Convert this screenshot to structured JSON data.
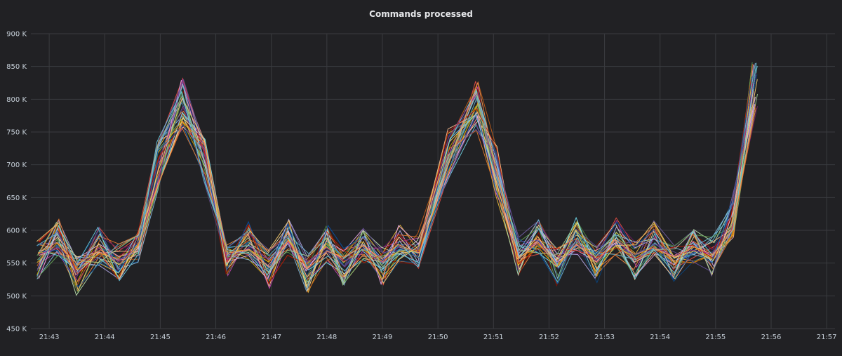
{
  "panel": {
    "title": "Commands processed"
  },
  "chart_data": {
    "type": "line",
    "title": "Commands processed",
    "xlabel": "",
    "ylabel": "",
    "y_ticks": [
      "450 K",
      "500 K",
      "550 K",
      "600 K",
      "650 K",
      "700 K",
      "750 K",
      "800 K",
      "850 K",
      "900 K"
    ],
    "y_tick_values": [
      450000,
      500000,
      550000,
      600000,
      650000,
      700000,
      750000,
      800000,
      850000,
      900000
    ],
    "ylim": [
      450000,
      900000
    ],
    "x_ticks": [
      "21:43",
      "21:44",
      "21:45",
      "21:46",
      "21:47",
      "21:48",
      "21:49",
      "21:50",
      "21:51",
      "21:52",
      "21:53",
      "21:54",
      "21:55",
      "21:56",
      "21:57"
    ],
    "x_tick_minutes": [
      43,
      44,
      45,
      46,
      47,
      48,
      49,
      50,
      51,
      52,
      53,
      54,
      55,
      56,
      57
    ],
    "xlim_minutes": [
      42.67,
      57.15
    ],
    "grid": true,
    "x_minutes": [
      42.8,
      43.15,
      43.5,
      43.9,
      44.25,
      44.6,
      44.95,
      45.4,
      45.8,
      46.2,
      46.6,
      46.95,
      47.3,
      47.65,
      48.0,
      48.3,
      48.65,
      49.0,
      49.3,
      49.65,
      50.2,
      50.7,
      51.05,
      51.45,
      51.8,
      52.15,
      52.5,
      52.85,
      53.2,
      53.55,
      53.9,
      54.25,
      54.6,
      54.95,
      55.3,
      55.7
    ],
    "series_colors": [
      "#7eb26d",
      "#eab839",
      "#6ed0e0",
      "#ef843c",
      "#e24d42",
      "#1f78c1",
      "#ba43a9",
      "#705da0",
      "#508642",
      "#cca300",
      "#447ebc",
      "#c15c17",
      "#890f02",
      "#0a437c",
      "#6d1f62",
      "#584477",
      "#b7dbab",
      "#f4d598",
      "#70dbed",
      "#f9ba8f",
      "#f29191",
      "#82b5d8",
      "#e5a8e2",
      "#aea2e0",
      "#629e51",
      "#e5ac0e",
      "#64b0c8",
      "#e0752d",
      "#bf1b00",
      "#0a50a1",
      "#962d82",
      "#614d93",
      "#9ac48a",
      "#f2c96d",
      "#65c5db",
      "#f9934e"
    ],
    "base_series": [
      555000,
      590000,
      530000,
      575000,
      550000,
      575000,
      700000,
      795000,
      705000,
      560000,
      585000,
      540000,
      590000,
      535000,
      580000,
      545000,
      580000,
      545000,
      578000,
      565000,
      720000,
      790000,
      690000,
      560000,
      590000,
      545000,
      590000,
      550000,
      590000,
      555000,
      585000,
      548000,
      575000,
      560000,
      620000,
      820000
    ]
  }
}
